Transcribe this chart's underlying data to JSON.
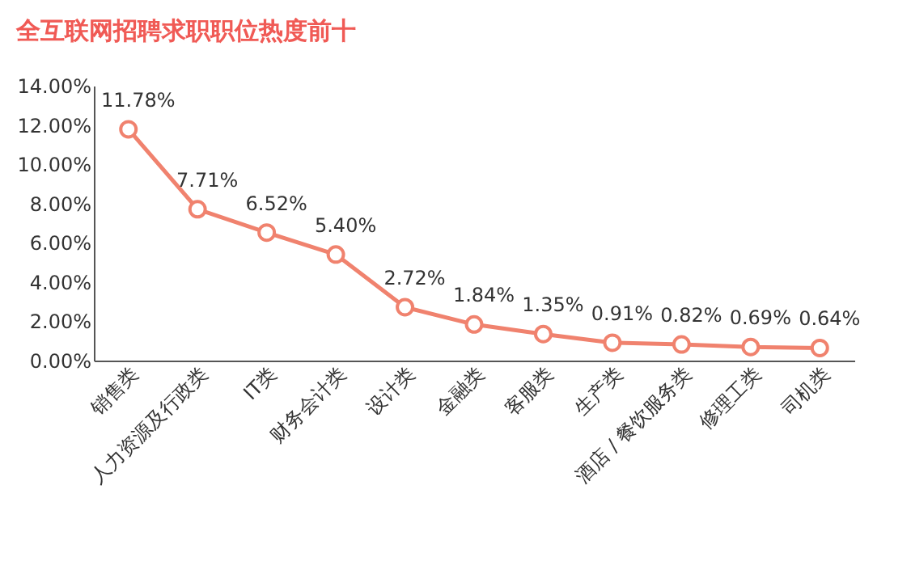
{
  "chart_data": {
    "type": "line",
    "title": "全互联网招聘求职职位热度前十",
    "categories": [
      "销售类",
      "人力资源及行政类",
      "IT类",
      "财务会计类",
      "设计类",
      "金融类",
      "客服类",
      "生产类",
      "酒店 / 餐饮服务类",
      "修理工类",
      "司机类"
    ],
    "series": [
      {
        "color": "#f0826e",
        "values": [
          11.78,
          7.71,
          6.52,
          5.4,
          2.72,
          1.84,
          1.35,
          0.91,
          0.82,
          0.69,
          0.64
        ],
        "value_labels": [
          "11.78%",
          "7.71%",
          "6.52%",
          "5.40%",
          "2.72%",
          "1.84%",
          "1.35%",
          "0.91%",
          "0.82%",
          "0.69%",
          "0.64%"
        ]
      }
    ],
    "ylim": [
      0,
      14
    ],
    "yticks": [
      {
        "value": 0,
        "label": "0.00%"
      },
      {
        "value": 2,
        "label": "2.00%"
      },
      {
        "value": 4,
        "label": "4.00%"
      },
      {
        "value": 6,
        "label": "6.00%"
      },
      {
        "value": 8,
        "label": "8.00%"
      },
      {
        "value": 10,
        "label": "10.00%"
      },
      {
        "value": 12,
        "label": "12.00%"
      },
      {
        "value": 14,
        "label": "14.00%"
      }
    ],
    "marker": "circle",
    "line_style": "solid",
    "grid": false
  }
}
